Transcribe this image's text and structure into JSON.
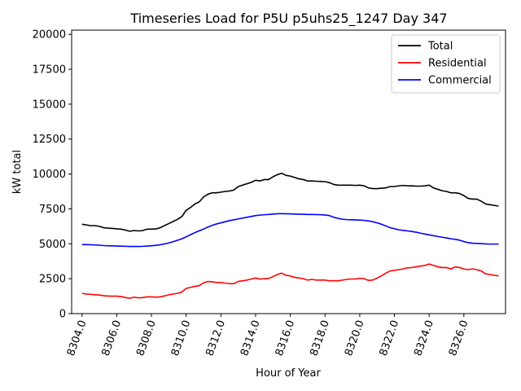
{
  "chart_data": {
    "type": "line",
    "title": "Timeseries Load for P5U p5uhs25_1247  Day 347",
    "xlabel": "Hour of Year",
    "ylabel": "kW total",
    "xlim": [
      8303.4,
      8328.4
    ],
    "ylim": [
      0,
      20300
    ],
    "xticks": [
      8304,
      8306,
      8308,
      8310,
      8312,
      8314,
      8316,
      8318,
      8320,
      8322,
      8324,
      8326
    ],
    "xtick_labels": [
      "8304.0",
      "8306.0",
      "8308.0",
      "8310.0",
      "8312.0",
      "8314.0",
      "8316.0",
      "8318.0",
      "8320.0",
      "8322.0",
      "8324.0",
      "8326.0"
    ],
    "yticks": [
      0,
      2500,
      5000,
      7500,
      10000,
      12500,
      15000,
      17500,
      20000
    ],
    "ytick_labels": [
      "0",
      "2500",
      "5000",
      "7500",
      "10000",
      "12500",
      "15000",
      "17500",
      "20000"
    ],
    "legend_position": "top-right",
    "x_start": 8304.0,
    "x_step": 0.25,
    "series": [
      {
        "name": "Total",
        "color": "#000000",
        "values": [
          6400,
          6350,
          6300,
          6300,
          6250,
          6150,
          6120,
          6100,
          6070,
          6050,
          5980,
          5900,
          5950,
          5920,
          5950,
          6050,
          6050,
          6060,
          6150,
          6300,
          6450,
          6600,
          6750,
          6950,
          7400,
          7600,
          7850,
          8000,
          8350,
          8550,
          8650,
          8650,
          8700,
          8750,
          8780,
          8850,
          9100,
          9200,
          9300,
          9400,
          9550,
          9500,
          9600,
          9600,
          9800,
          9950,
          10050,
          9900,
          9850,
          9750,
          9650,
          9600,
          9500,
          9500,
          9480,
          9470,
          9450,
          9380,
          9250,
          9200,
          9200,
          9200,
          9200,
          9180,
          9200,
          9150,
          9000,
          8950,
          8950,
          8980,
          9000,
          9100,
          9100,
          9150,
          9180,
          9150,
          9150,
          9130,
          9130,
          9150,
          9200,
          9000,
          8900,
          8800,
          8750,
          8650,
          8650,
          8600,
          8450,
          8250,
          8200,
          8200,
          8050,
          7850,
          7800,
          7750,
          7700
        ]
      },
      {
        "name": "Residential",
        "color": "#ff0000",
        "values": [
          1450,
          1400,
          1380,
          1350,
          1330,
          1280,
          1260,
          1250,
          1250,
          1220,
          1150,
          1100,
          1180,
          1130,
          1150,
          1200,
          1200,
          1180,
          1200,
          1270,
          1350,
          1400,
          1450,
          1550,
          1800,
          1880,
          1950,
          2000,
          2200,
          2300,
          2280,
          2230,
          2230,
          2180,
          2150,
          2150,
          2300,
          2350,
          2400,
          2480,
          2550,
          2470,
          2500,
          2520,
          2650,
          2800,
          2900,
          2750,
          2700,
          2600,
          2550,
          2500,
          2400,
          2450,
          2400,
          2400,
          2400,
          2350,
          2350,
          2350,
          2400,
          2450,
          2480,
          2480,
          2530,
          2500,
          2380,
          2400,
          2550,
          2700,
          2900,
          3050,
          3100,
          3150,
          3200,
          3280,
          3300,
          3350,
          3400,
          3450,
          3550,
          3450,
          3350,
          3300,
          3300,
          3200,
          3350,
          3300,
          3200,
          3150,
          3200,
          3150,
          3050,
          2850,
          2800,
          2750,
          2700
        ]
      },
      {
        "name": "Commercial",
        "color": "#0000ff",
        "values": [
          4950,
          4940,
          4930,
          4920,
          4900,
          4870,
          4860,
          4850,
          4840,
          4830,
          4820,
          4810,
          4810,
          4810,
          4820,
          4840,
          4860,
          4890,
          4930,
          4990,
          5060,
          5150,
          5250,
          5360,
          5500,
          5650,
          5800,
          5930,
          6050,
          6200,
          6320,
          6420,
          6500,
          6580,
          6660,
          6720,
          6780,
          6840,
          6900,
          6960,
          7020,
          7050,
          7080,
          7100,
          7130,
          7150,
          7160,
          7150,
          7140,
          7130,
          7120,
          7110,
          7100,
          7100,
          7090,
          7080,
          7060,
          7020,
          6900,
          6820,
          6760,
          6730,
          6720,
          6710,
          6700,
          6680,
          6640,
          6580,
          6500,
          6400,
          6280,
          6150,
          6080,
          6000,
          5960,
          5920,
          5880,
          5830,
          5760,
          5700,
          5640,
          5580,
          5520,
          5470,
          5420,
          5360,
          5320,
          5260,
          5160,
          5080,
          5040,
          5030,
          5010,
          4990,
          4980,
          4980,
          4980
        ]
      }
    ]
  }
}
